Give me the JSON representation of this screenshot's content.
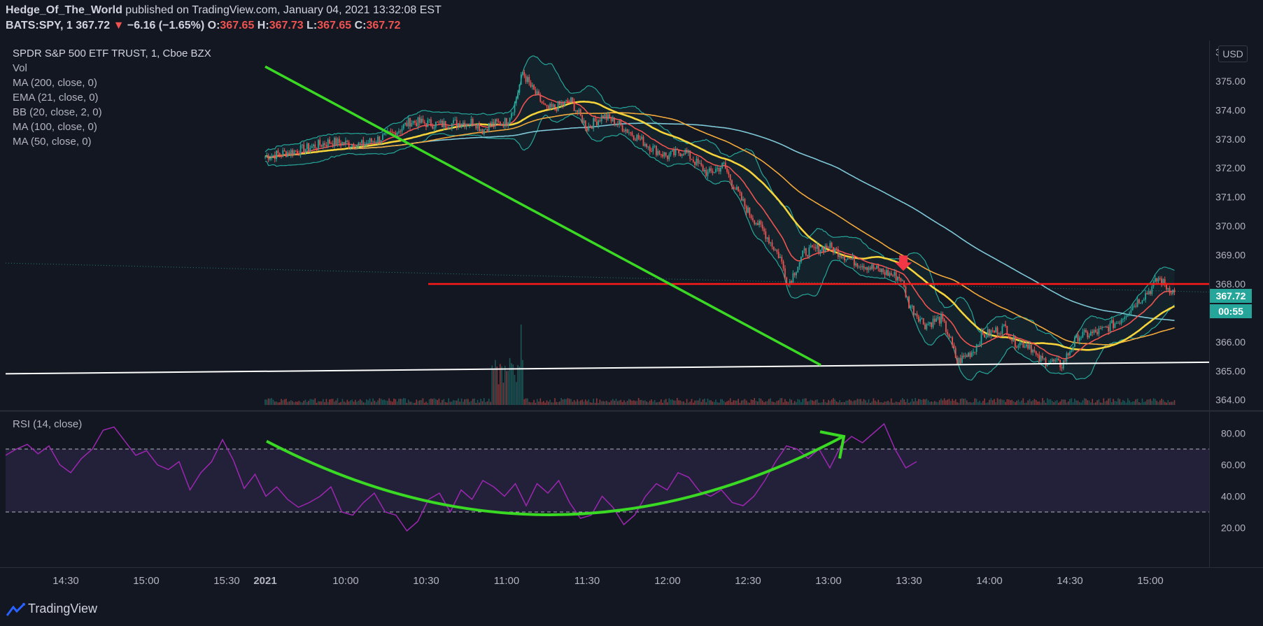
{
  "header": {
    "author": "Hedge_Of_The_World",
    "published_text": " published on TradingView.com, January 04, 2021 13:32:08 EST",
    "symbol": "BATS:SPY, 1",
    "last": "367.72",
    "change_arrow": "▼",
    "change": "−6.16 (−1.65%)",
    "o_label": "O:",
    "o": "367.65",
    "h_label": "H:",
    "h": "367.73",
    "l_label": "L:",
    "l": "367.65",
    "c_label": "C:",
    "c": "367.72"
  },
  "legend": {
    "title": "SPDR S&P 500 ETF TRUST, 1, Cboe BZX",
    "items": [
      "Vol",
      "MA (200, close, 0)",
      "EMA (21, close, 0)",
      "BB (20, close, 2, 0)",
      "MA (100, close, 0)",
      "MA (50, close, 0)"
    ]
  },
  "rsi_label": "RSI (14, close)",
  "currency": "USD",
  "price_tag": "367.72",
  "countdown": "00:55",
  "brand": "TradingView",
  "colors": {
    "background": "#131722",
    "up": "#26a69a",
    "down": "#ef5350",
    "ma200": "#7ec8d8",
    "ema21": "#ef5350",
    "ma100": "#f2a93b",
    "ma50": "#f5d33b",
    "rsi": "#9c27b0",
    "trendline": "#3ad923",
    "resistance": "#ff1a1a",
    "support": "#ffffff"
  },
  "chart_data": [
    {
      "type": "candlestick",
      "title": "SPDR S&P 500 ETF TRUST, 1, Cboe BZX",
      "x_ticks": [
        "14:30",
        "15:00",
        "15:30",
        "2021",
        "10:00",
        "10:30",
        "11:00",
        "11:30",
        "12:00",
        "12:30",
        "13:00",
        "13:30",
        "14:00",
        "14:30",
        "15:00"
      ],
      "y_ticks": [
        "364.00",
        "365.00",
        "366.00",
        "367.00",
        "368.00",
        "369.00",
        "370.00",
        "371.00",
        "372.00",
        "373.00",
        "374.00",
        "375.00",
        "376.00"
      ],
      "ylim": [
        363.8,
        376.3
      ],
      "close_path": [
        {
          "t": 0,
          "p": 372.4
        },
        {
          "t": 4,
          "p": 372.6
        },
        {
          "t": 8,
          "p": 372.9
        },
        {
          "t": 12,
          "p": 372.8
        },
        {
          "t": 16,
          "p": 373.2
        },
        {
          "t": 18,
          "p": 373.6
        },
        {
          "t": 22,
          "p": 373.5
        },
        {
          "t": 26,
          "p": 373.6
        },
        {
          "t": 27,
          "p": 373.3
        },
        {
          "t": 28,
          "p": 373.5
        },
        {
          "t": 30,
          "p": 373.6
        },
        {
          "t": 31,
          "p": 374.2
        },
        {
          "t": 32,
          "p": 375.3
        },
        {
          "t": 33,
          "p": 374.8
        },
        {
          "t": 35,
          "p": 374.0
        },
        {
          "t": 38,
          "p": 374.3
        },
        {
          "t": 40,
          "p": 373.4
        },
        {
          "t": 42,
          "p": 373.8
        },
        {
          "t": 44,
          "p": 373.5
        },
        {
          "t": 46,
          "p": 373.1
        },
        {
          "t": 48,
          "p": 372.7
        },
        {
          "t": 50,
          "p": 372.4
        },
        {
          "t": 52,
          "p": 372.6
        },
        {
          "t": 55,
          "p": 371.8
        },
        {
          "t": 57,
          "p": 372.1
        },
        {
          "t": 58,
          "p": 371.5
        },
        {
          "t": 60,
          "p": 370.5
        },
        {
          "t": 62,
          "p": 369.8
        },
        {
          "t": 64,
          "p": 368.9
        },
        {
          "t": 65,
          "p": 368.0
        },
        {
          "t": 67,
          "p": 369.1
        },
        {
          "t": 70,
          "p": 369.3
        },
        {
          "t": 73,
          "p": 368.8
        },
        {
          "t": 76,
          "p": 368.5
        },
        {
          "t": 79,
          "p": 368.2
        },
        {
          "t": 80,
          "p": 367.3
        },
        {
          "t": 82,
          "p": 366.6
        },
        {
          "t": 84,
          "p": 366.8
        },
        {
          "t": 85,
          "p": 366.2
        },
        {
          "t": 86,
          "p": 365.3
        },
        {
          "t": 88,
          "p": 365.7
        },
        {
          "t": 89,
          "p": 366.2
        },
        {
          "t": 91,
          "p": 366.4
        },
        {
          "t": 92,
          "p": 366.5
        },
        {
          "t": 93,
          "p": 366.0
        },
        {
          "t": 95,
          "p": 365.9
        },
        {
          "t": 96,
          "p": 365.4
        },
        {
          "t": 98,
          "p": 365.3
        },
        {
          "t": 99,
          "p": 365.2
        },
        {
          "t": 100,
          "p": 365.7
        },
        {
          "t": 101,
          "p": 366.2
        },
        {
          "t": 103,
          "p": 366.3
        },
        {
          "t": 104,
          "p": 366.4
        },
        {
          "t": 106,
          "p": 366.7
        },
        {
          "t": 108,
          "p": 367.3
        },
        {
          "t": 110,
          "p": 367.8
        },
        {
          "t": 111,
          "p": 368.2
        },
        {
          "t": 112,
          "p": 367.9
        },
        {
          "t": 113,
          "p": 367.72
        }
      ],
      "levels": {
        "resistance": 368.0,
        "support_start": 364.9,
        "support_end": 365.3
      }
    },
    {
      "type": "line",
      "title": "RSI (14, close)",
      "y_ticks": [
        "20.00",
        "40.00",
        "60.00",
        "80.00"
      ],
      "ylim": [
        10,
        90
      ],
      "bands": [
        30,
        70
      ],
      "values": [
        66,
        70,
        73,
        67,
        72,
        60,
        55,
        64,
        70,
        82,
        84,
        75,
        66,
        69,
        60,
        57,
        62,
        44,
        55,
        62,
        76,
        63,
        45,
        54,
        40,
        46,
        38,
        33,
        36,
        40,
        46,
        30,
        28,
        36,
        42,
        30,
        28,
        18,
        24,
        38,
        42,
        30,
        44,
        38,
        50,
        46,
        40,
        48,
        34,
        48,
        42,
        50,
        36,
        26,
        28,
        40,
        33,
        22,
        28,
        40,
        48,
        44,
        55,
        52,
        43,
        40,
        44,
        36,
        34,
        40,
        50,
        62,
        72,
        70,
        64,
        70,
        58,
        72,
        78,
        74,
        80,
        86,
        70,
        58,
        62
      ]
    }
  ]
}
